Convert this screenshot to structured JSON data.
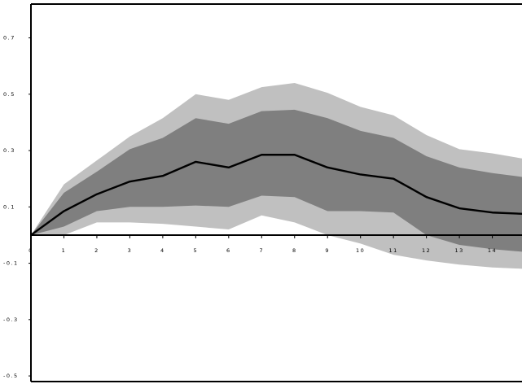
{
  "chart_data": {
    "type": "line",
    "title": "",
    "xlabel": "",
    "ylabel": "",
    "x": [
      0,
      1,
      2,
      3,
      4,
      5,
      6,
      7,
      8,
      9,
      10,
      11,
      12,
      13,
      14,
      15
    ],
    "x_tick_labels": [
      "0",
      "1",
      "2",
      "3",
      "4",
      "5",
      "6",
      "7",
      "8",
      "9",
      "10",
      "11",
      "12",
      "13",
      "14"
    ],
    "y_tick_values": [
      0.7,
      0.5,
      0.3,
      0.1,
      -0.1,
      -0.3,
      -0.5
    ],
    "y_tick_labels": [
      "0.7",
      "0.5",
      "0.3",
      "0.1",
      "-0.1",
      "-0.3",
      "-0.5"
    ],
    "xlim": [
      0,
      14.9
    ],
    "ylim": [
      -0.52,
      0.82
    ],
    "series": [
      {
        "values": [
          0.0,
          0.085,
          0.145,
          0.19,
          0.21,
          0.26,
          0.24,
          0.285,
          0.285,
          0.24,
          0.215,
          0.2,
          0.135,
          0.095,
          0.08,
          0.075
        ]
      }
    ],
    "bands": [
      {
        "lower": [
          0.0,
          0.0,
          0.045,
          0.045,
          0.04,
          0.03,
          0.02,
          0.07,
          0.045,
          0.0,
          -0.03,
          -0.07,
          -0.09,
          -0.105,
          -0.115,
          -0.12
        ],
        "upper": [
          0.0,
          0.18,
          0.265,
          0.35,
          0.415,
          0.5,
          0.48,
          0.525,
          0.54,
          0.505,
          0.455,
          0.425,
          0.355,
          0.305,
          0.29,
          0.27
        ],
        "color": "#c0c0c0"
      },
      {
        "lower": [
          0.0,
          0.03,
          0.085,
          0.1,
          0.1,
          0.105,
          0.1,
          0.14,
          0.135,
          0.085,
          0.085,
          0.08,
          0.0,
          -0.035,
          -0.05,
          -0.06
        ],
        "upper": [
          0.0,
          0.15,
          0.225,
          0.305,
          0.345,
          0.415,
          0.395,
          0.44,
          0.445,
          0.415,
          0.37,
          0.345,
          0.28,
          0.24,
          0.22,
          0.205
        ],
        "color": "#7f7f7f"
      }
    ],
    "line_color": "#000000",
    "grid": false,
    "legend": "none"
  }
}
